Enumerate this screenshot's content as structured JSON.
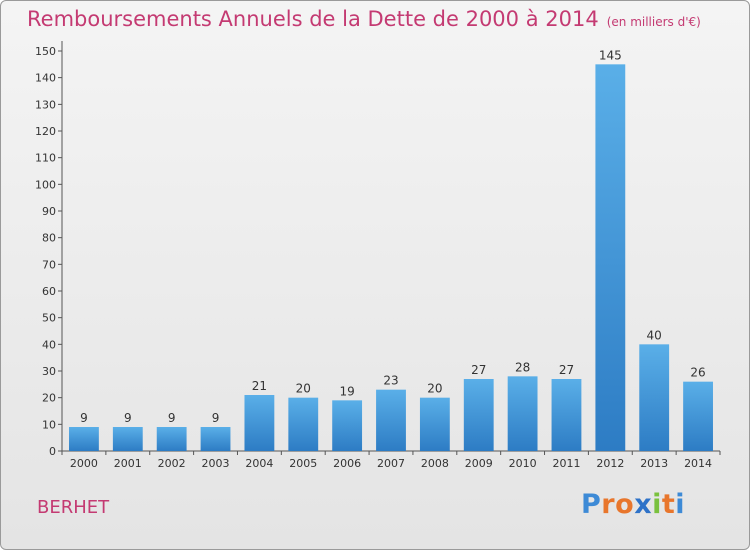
{
  "header": {
    "title": "Remboursements Annuels de la Dette de 2000 à 2014",
    "unit": "(en milliers d'€)"
  },
  "commune": "BERHET",
  "logo": {
    "text": "Proxiti",
    "colors": [
      "#3d8ad6",
      "#e8762c",
      "#e8762c",
      "#2e72c8",
      "#7ac13e",
      "#e8762c",
      "#3d8ad6"
    ]
  },
  "chart_data": {
    "type": "bar",
    "title": "Remboursements Annuels de la Dette de 2000 à 2014",
    "categories": [
      "2000",
      "2001",
      "2002",
      "2003",
      "2004",
      "2005",
      "2006",
      "2007",
      "2008",
      "2009",
      "2010",
      "2011",
      "2012",
      "2013",
      "2014"
    ],
    "values": [
      9,
      9,
      9,
      9,
      21,
      20,
      19,
      23,
      20,
      27,
      28,
      27,
      145,
      40,
      26
    ],
    "value_labels": [
      "9",
      "9",
      "9",
      "9",
      "21",
      "20",
      "19",
      "23",
      "20",
      "27",
      "28",
      "27",
      "145",
      "40",
      "26"
    ],
    "yticks": [
      "0",
      "10",
      "20",
      "30",
      "40",
      "50",
      "60",
      "70",
      "80",
      "90",
      "100",
      "110",
      "120",
      "130",
      "140",
      "150"
    ],
    "ylim": [
      0,
      150
    ],
    "grid": false,
    "bar_color": "#3d8fd6"
  }
}
